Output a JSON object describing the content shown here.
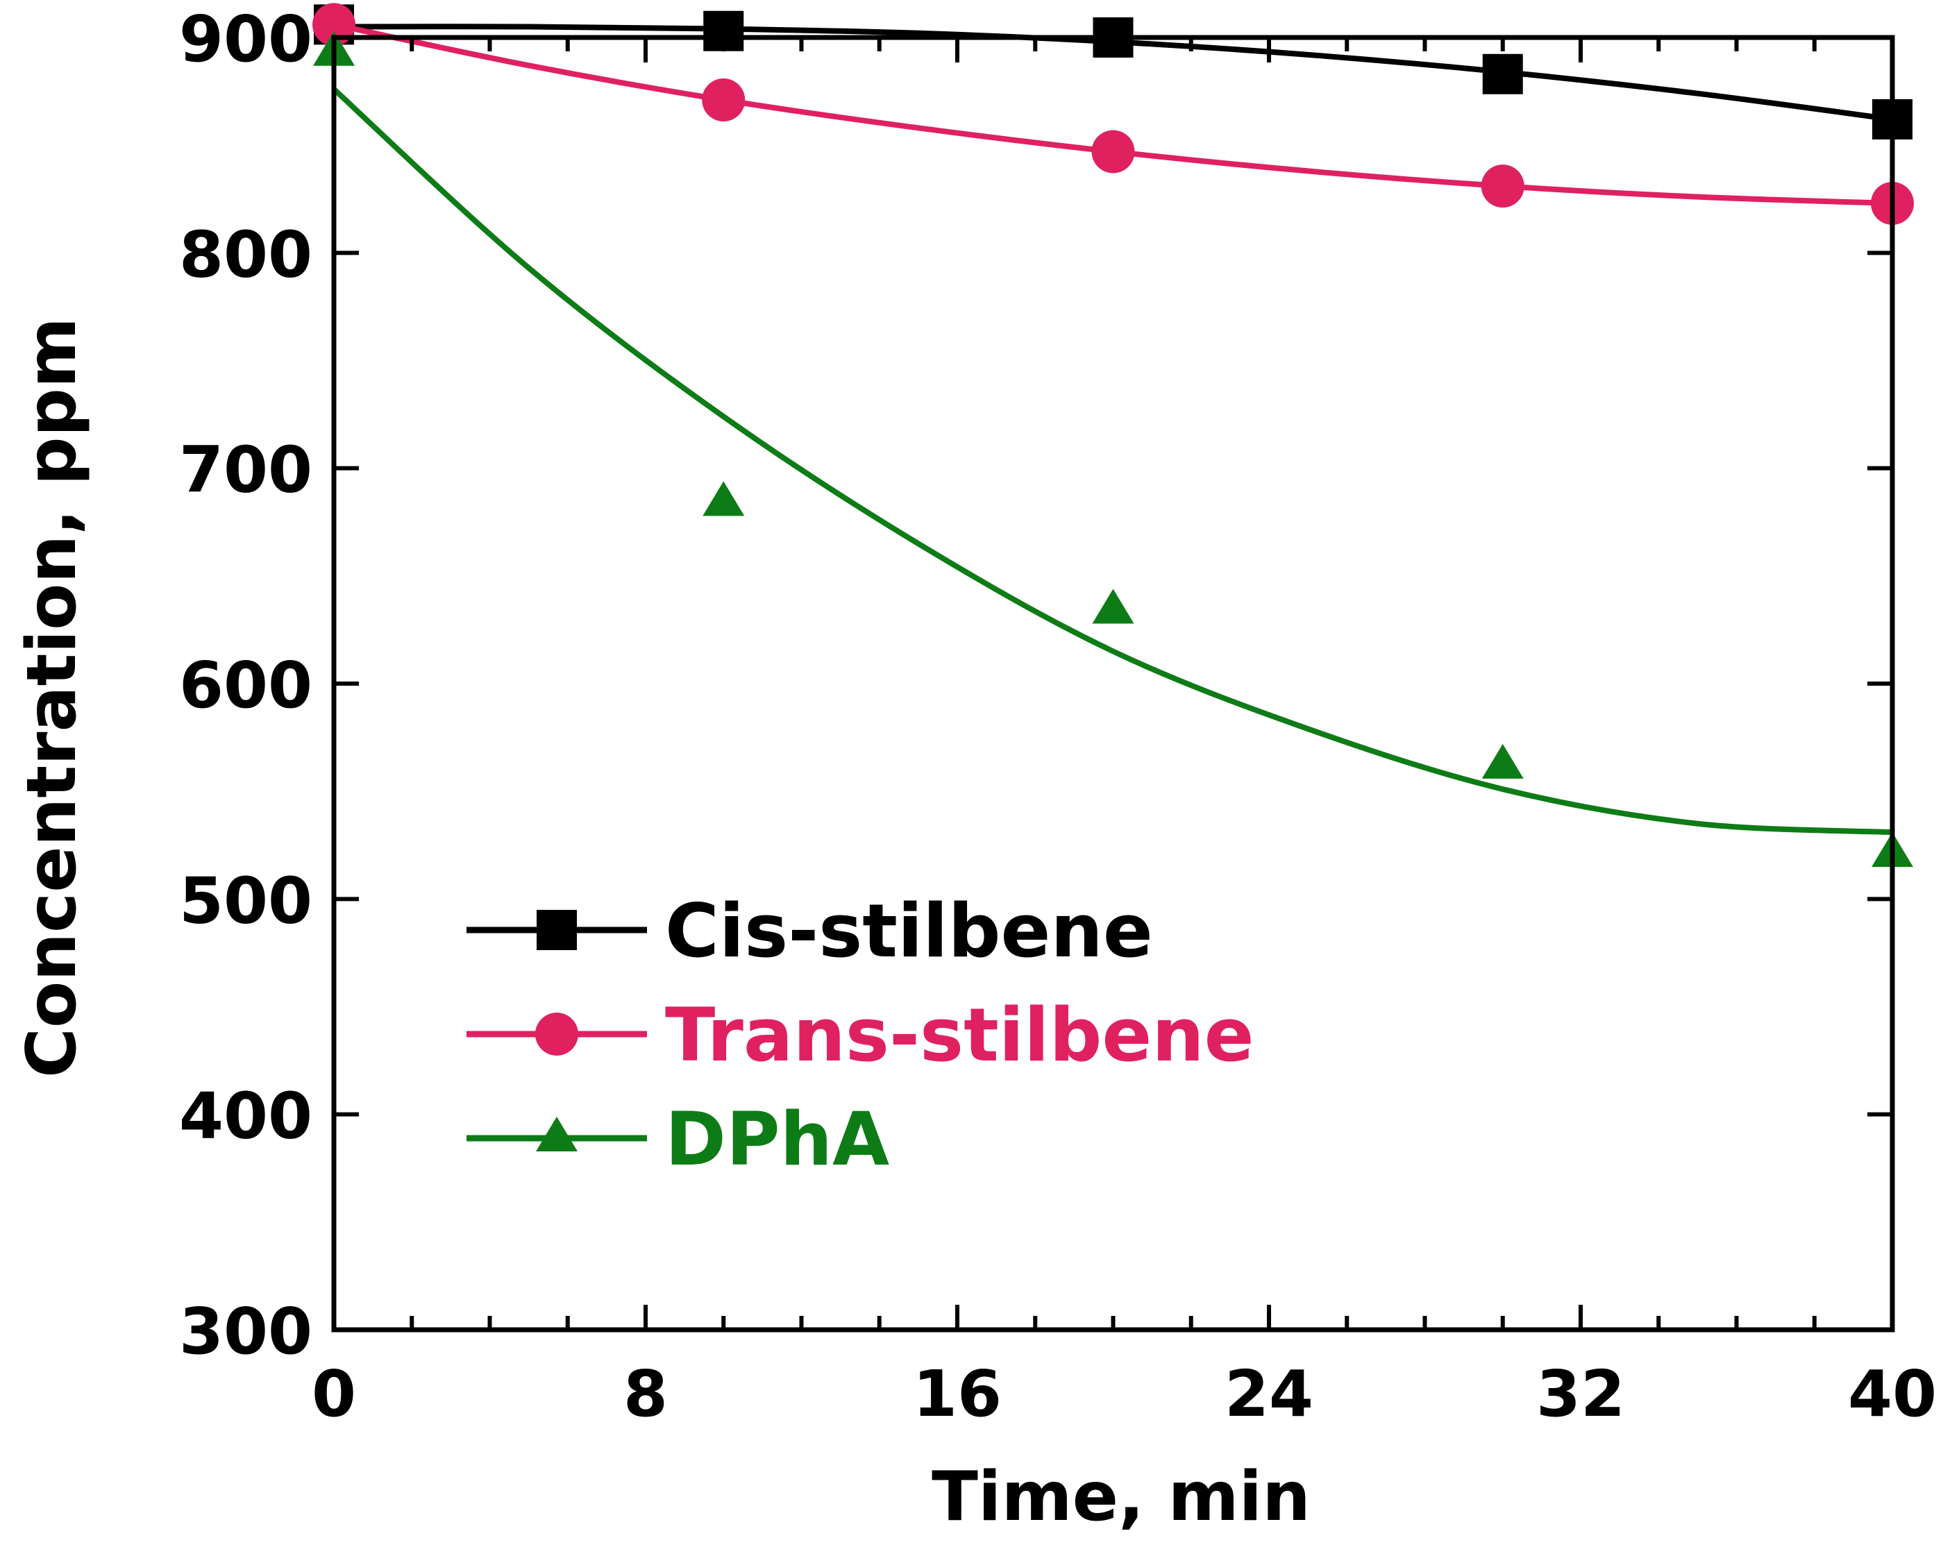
{
  "chart_data": {
    "type": "line",
    "title": "",
    "xlabel": "Time, min",
    "ylabel": "Concentration, ppm",
    "xlim": [
      0,
      40
    ],
    "ylim": [
      300,
      900
    ],
    "x_major_ticks": [
      0,
      8,
      16,
      24,
      32,
      40
    ],
    "x_tick_labels": [
      "0",
      "8",
      "16",
      "24",
      "32",
      "40"
    ],
    "x_minor_step": 2,
    "y_major_ticks": [
      300,
      400,
      500,
      600,
      700,
      800,
      900
    ],
    "y_tick_labels": [
      "300",
      "400",
      "500",
      "600",
      "700",
      "800",
      "900"
    ],
    "grid": false,
    "legend_position": "lower-left",
    "series": [
      {
        "name": "Cis-stilbene",
        "color": "#000000",
        "marker": "square",
        "x": [
          0,
          10,
          20,
          30,
          40
        ],
        "values": [
          906,
          903,
          900,
          883,
          862
        ],
        "fit_x": [
          0,
          5,
          10,
          15,
          20,
          25,
          30,
          35,
          40
        ],
        "fit_y": [
          905,
          905,
          904,
          902,
          898,
          892,
          884,
          874,
          862
        ]
      },
      {
        "name": "Trans-stilbene",
        "color": "#e0215f",
        "marker": "circle",
        "x": [
          0,
          10,
          20,
          30,
          40
        ],
        "values": [
          906,
          871,
          847,
          831,
          823
        ],
        "fit_x": [
          0,
          5,
          10,
          15,
          20,
          25,
          30,
          35,
          40
        ],
        "fit_y": [
          906,
          887,
          871,
          858,
          847,
          838,
          831,
          826,
          823
        ]
      },
      {
        "name": "DPhA",
        "color": "#0e7c16",
        "marker": "triangle",
        "x": [
          0,
          10,
          20,
          30,
          40
        ],
        "values": [
          893,
          684,
          634,
          562,
          521
        ],
        "fit_x": [
          0,
          5,
          10,
          15,
          20,
          25,
          30,
          35,
          40
        ],
        "fit_y": [
          876,
          793,
          724,
          665,
          615,
          579,
          551,
          535,
          531
        ]
      }
    ]
  }
}
